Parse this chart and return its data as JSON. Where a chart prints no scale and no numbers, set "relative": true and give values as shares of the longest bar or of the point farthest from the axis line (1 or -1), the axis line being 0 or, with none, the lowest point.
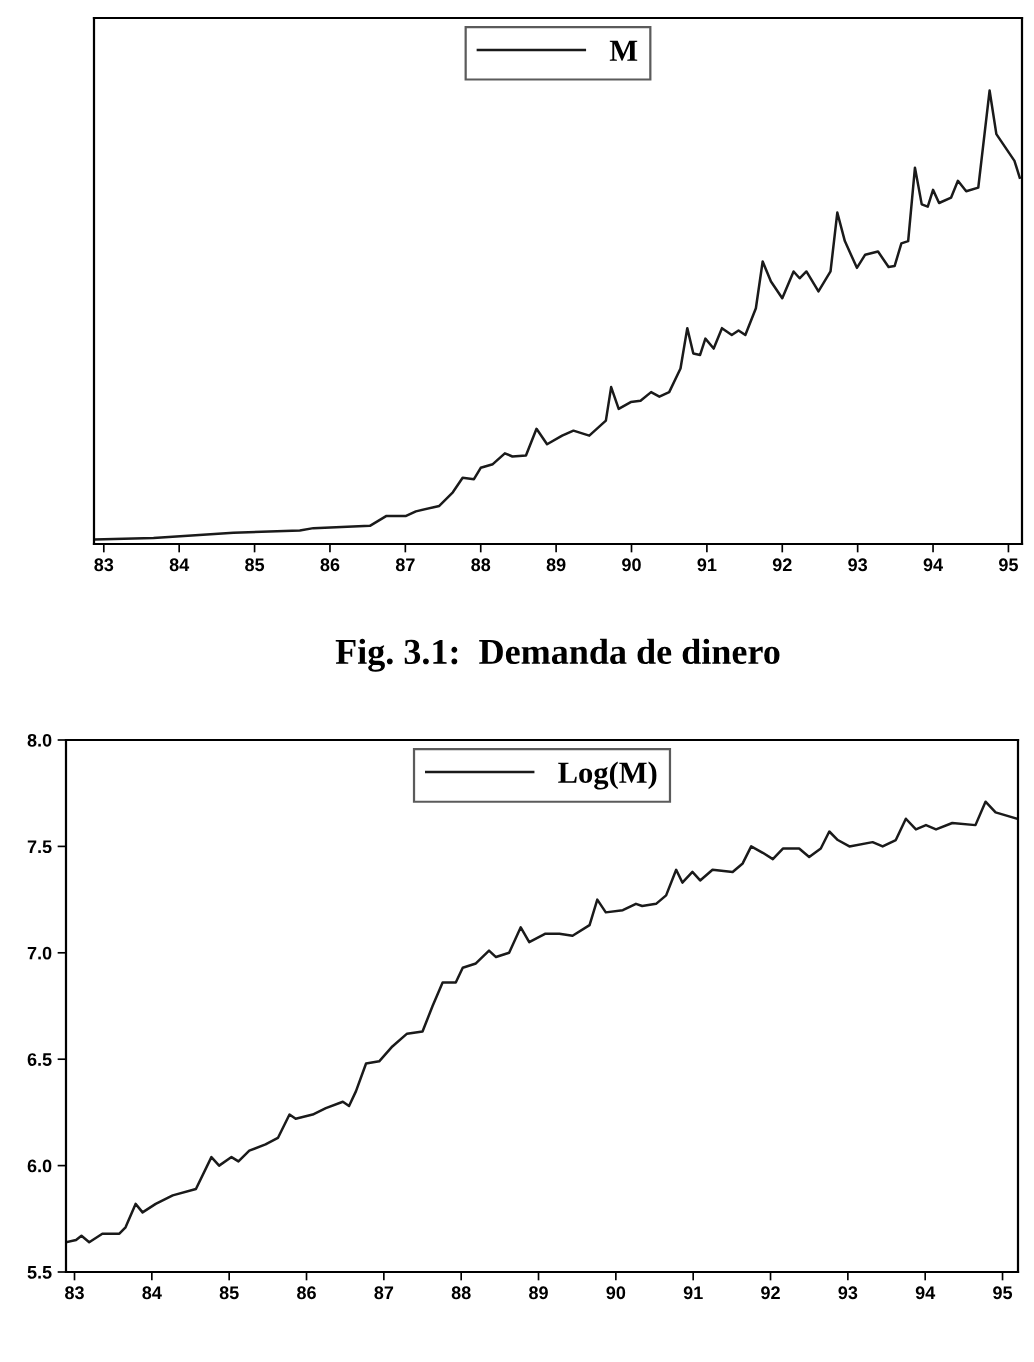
{
  "chart_data": [
    {
      "type": "line",
      "relative": true,
      "legend": "top",
      "grid": false,
      "marker": "none",
      "line_style": "solid",
      "xlim": [
        82.87,
        95.18
      ],
      "xticks": [
        83,
        84,
        85,
        86,
        87,
        88,
        89,
        90,
        91,
        92,
        93,
        94,
        95
      ],
      "annotations": [
        "Fig. 3.1:  Demanda de dinero"
      ],
      "series": [
        {
          "name": "M",
          "color": "#1a1a1a",
          "x": [
            82.87,
            83.66,
            84.72,
            85.6,
            85.78,
            86.53,
            86.75,
            87.01,
            87.14,
            87.45,
            87.63,
            87.76,
            87.91,
            88.0,
            88.16,
            88.32,
            88.42,
            88.6,
            88.74,
            88.88,
            89.08,
            89.23,
            89.44,
            89.66,
            89.73,
            89.83,
            89.99,
            90.12,
            90.26,
            90.37,
            90.5,
            90.65,
            90.74,
            90.82,
            90.91,
            90.98,
            91.09,
            91.2,
            91.33,
            91.42,
            91.51,
            91.65,
            91.74,
            91.85,
            92.0,
            92.15,
            92.23,
            92.32,
            92.48,
            92.64,
            92.73,
            92.83,
            92.99,
            93.1,
            93.27,
            93.41,
            93.49,
            93.58,
            93.67,
            93.76,
            93.85,
            93.93,
            94.0,
            94.08,
            94.24,
            94.33,
            94.44,
            94.6,
            94.75,
            94.84,
            95.08,
            95.15
          ],
          "values": [
            0.01,
            0.013,
            0.025,
            0.03,
            0.035,
            0.04,
            0.062,
            0.062,
            0.072,
            0.084,
            0.114,
            0.146,
            0.143,
            0.168,
            0.176,
            0.2,
            0.193,
            0.195,
            0.254,
            0.22,
            0.239,
            0.25,
            0.239,
            0.272,
            0.346,
            0.298,
            0.313,
            0.316,
            0.335,
            0.325,
            0.335,
            0.387,
            0.476,
            0.42,
            0.417,
            0.453,
            0.431,
            0.476,
            0.461,
            0.471,
            0.461,
            0.52,
            0.623,
            0.579,
            0.542,
            0.601,
            0.586,
            0.601,
            0.557,
            0.601,
            0.731,
            0.668,
            0.609,
            0.638,
            0.645,
            0.611,
            0.613,
            0.663,
            0.668,
            0.83,
            0.749,
            0.744,
            0.781,
            0.752,
            0.764,
            0.801,
            0.778,
            0.786,
            1.0,
            0.904,
            0.845,
            0.808
          ]
        }
      ]
    },
    {
      "type": "line",
      "legend": "top",
      "grid": false,
      "marker": "none",
      "line_style": "solid",
      "xlim": [
        82.89,
        95.2
      ],
      "xticks": [
        83,
        84,
        85,
        86,
        87,
        88,
        89,
        90,
        91,
        92,
        93,
        94,
        95
      ],
      "ylim": [
        5.5,
        8.0
      ],
      "yticks": [
        {
          "value": 5.5,
          "label": "5.5"
        },
        {
          "value": 6.0,
          "label": "6.0"
        },
        {
          "value": 6.5,
          "label": "6.5"
        },
        {
          "value": 7.0,
          "label": "7.0"
        },
        {
          "value": 7.5,
          "label": "7.5"
        },
        {
          "value": 8.0,
          "label": "8.0"
        }
      ],
      "series": [
        {
          "name": "Log(M)",
          "color": "#1a1a1a",
          "x": [
            82.89,
            83.02,
            83.09,
            83.19,
            83.36,
            83.58,
            83.66,
            83.79,
            83.88,
            84.05,
            84.27,
            84.57,
            84.77,
            84.87,
            85.03,
            85.12,
            85.26,
            85.47,
            85.63,
            85.78,
            85.86,
            86.08,
            86.25,
            86.47,
            86.55,
            86.64,
            86.77,
            86.94,
            87.11,
            87.3,
            87.5,
            87.63,
            87.76,
            87.93,
            88.02,
            88.19,
            88.36,
            88.45,
            88.62,
            88.77,
            88.88,
            89.09,
            89.27,
            89.44,
            89.66,
            89.76,
            89.87,
            90.09,
            90.26,
            90.34,
            90.52,
            90.65,
            90.78,
            90.86,
            90.99,
            91.09,
            91.25,
            91.51,
            91.64,
            91.75,
            91.9,
            92.03,
            92.16,
            92.37,
            92.5,
            92.65,
            92.76,
            92.87,
            93.02,
            93.32,
            93.45,
            93.62,
            93.75,
            93.88,
            94.01,
            94.14,
            94.35,
            94.65,
            94.78,
            94.91,
            95.19
          ],
          "values": [
            5.64,
            5.65,
            5.67,
            5.64,
            5.68,
            5.68,
            5.71,
            5.82,
            5.78,
            5.82,
            5.86,
            5.89,
            6.04,
            6.0,
            6.04,
            6.02,
            6.07,
            6.1,
            6.13,
            6.24,
            6.22,
            6.24,
            6.27,
            6.3,
            6.28,
            6.35,
            6.48,
            6.49,
            6.56,
            6.62,
            6.63,
            6.75,
            6.86,
            6.86,
            6.93,
            6.95,
            7.01,
            6.98,
            7.0,
            7.12,
            7.05,
            7.09,
            7.09,
            7.08,
            7.13,
            7.25,
            7.19,
            7.2,
            7.23,
            7.22,
            7.23,
            7.27,
            7.39,
            7.33,
            7.38,
            7.34,
            7.39,
            7.38,
            7.42,
            7.5,
            7.47,
            7.44,
            7.49,
            7.49,
            7.45,
            7.49,
            7.57,
            7.53,
            7.5,
            7.52,
            7.5,
            7.53,
            7.63,
            7.58,
            7.6,
            7.58,
            7.61,
            7.6,
            7.71,
            7.66,
            7.63
          ]
        }
      ]
    }
  ]
}
